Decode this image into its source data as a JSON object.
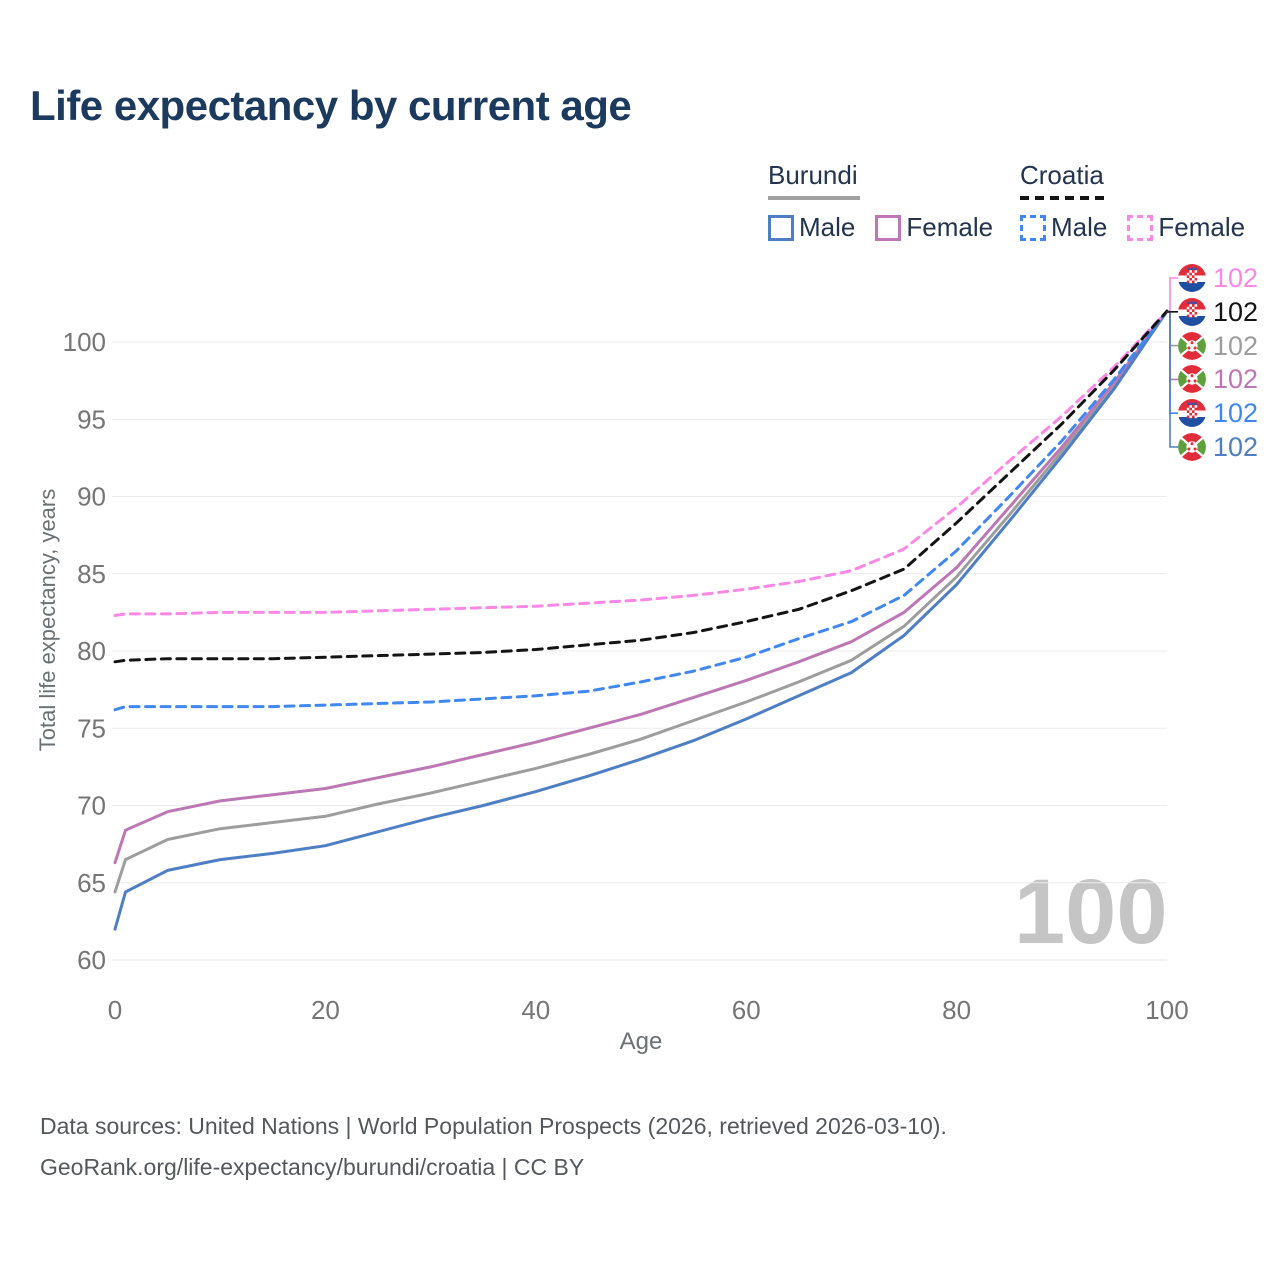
{
  "title": "Life expectancy by current age",
  "legend": {
    "groups": [
      {
        "country": "Burundi",
        "style": "solid",
        "items": [
          {
            "label": "Male"
          },
          {
            "label": "Female"
          }
        ]
      },
      {
        "country": "Croatia",
        "style": "dashed",
        "items": [
          {
            "label": "Male"
          },
          {
            "label": "Female"
          }
        ]
      }
    ]
  },
  "watermark": "100",
  "footer": {
    "line1": "Data sources: United Nations | World Population Prospects (2026, retrieved 2026-03-10).",
    "line2": "GeoRank.org/life-expectancy/burundi/croatia | CC BY"
  },
  "annotations": [
    {
      "id": "croatia-female",
      "flag": "croatia",
      "value": "102",
      "color": "#fb87e6"
    },
    {
      "id": "croatia-total",
      "flag": "croatia",
      "value": "102",
      "color": "#141414"
    },
    {
      "id": "burundi-total",
      "flag": "burundi",
      "value": "102",
      "color": "#9d9d9d"
    },
    {
      "id": "burundi-female",
      "flag": "burundi",
      "value": "102",
      "color": "#bd77b5"
    },
    {
      "id": "croatia-male",
      "flag": "croatia",
      "value": "102",
      "color": "#3f88f2"
    },
    {
      "id": "burundi-male",
      "flag": "burundi",
      "value": "102",
      "color": "#4e7fc4"
    }
  ],
  "chart_data": {
    "type": "line",
    "title": "Life expectancy by current age",
    "xlabel": "Age",
    "ylabel": "Total life expectancy, years",
    "xlim": [
      0,
      100
    ],
    "ylim": [
      60,
      102
    ],
    "xticks": [
      0,
      20,
      40,
      60,
      80,
      100
    ],
    "yticks": [
      60,
      65,
      70,
      75,
      80,
      85,
      90,
      95,
      100
    ],
    "grid": "horizontal",
    "legend_position": "top-right",
    "x": [
      0,
      1,
      5,
      10,
      15,
      20,
      25,
      30,
      35,
      40,
      45,
      50,
      55,
      60,
      65,
      70,
      75,
      80,
      85,
      90,
      95,
      100
    ],
    "series": [
      {
        "name": "Burundi Male",
        "country": "Burundi",
        "style": "solid",
        "color": "#4e7fc4",
        "values": [
          62.0,
          64.4,
          65.8,
          66.5,
          66.9,
          67.4,
          68.3,
          69.2,
          70.0,
          70.9,
          71.9,
          73.0,
          74.2,
          75.6,
          77.1,
          78.6,
          81.0,
          84.3,
          88.4,
          92.6,
          97.0,
          102
        ],
        "end_label": 102
      },
      {
        "name": "Burundi Female",
        "country": "Burundi",
        "style": "solid",
        "color": "#bd77b5",
        "values": [
          66.3,
          68.4,
          69.6,
          70.3,
          70.7,
          71.1,
          71.8,
          72.5,
          73.3,
          74.1,
          75.0,
          75.9,
          77.0,
          78.1,
          79.3,
          80.6,
          82.5,
          85.4,
          89.3,
          93.2,
          97.4,
          102
        ],
        "end_label": 102
      },
      {
        "name": "Burundi Total",
        "country": "Burundi",
        "style": "solid",
        "color": "#9d9d9d",
        "values": [
          64.4,
          66.5,
          67.8,
          68.5,
          68.9,
          69.3,
          70.1,
          70.8,
          71.6,
          72.4,
          73.3,
          74.3,
          75.5,
          76.7,
          78.0,
          79.4,
          81.6,
          84.8,
          88.8,
          92.9,
          97.2,
          102
        ],
        "end_label": 102
      },
      {
        "name": "Croatia Male",
        "country": "Croatia",
        "style": "dashed",
        "color": "#3f88f2",
        "values": [
          76.2,
          76.4,
          76.4,
          76.4,
          76.4,
          76.5,
          76.6,
          76.7,
          76.9,
          77.1,
          77.4,
          78.0,
          78.7,
          79.6,
          80.8,
          81.9,
          83.6,
          86.5,
          90.0,
          93.6,
          97.6,
          102
        ],
        "end_label": 102
      },
      {
        "name": "Croatia Female",
        "country": "Croatia",
        "style": "dashed",
        "color": "#fb87e6",
        "values": [
          82.3,
          82.4,
          82.4,
          82.5,
          82.5,
          82.5,
          82.6,
          82.7,
          82.8,
          82.9,
          83.1,
          83.3,
          83.6,
          84.0,
          84.5,
          85.2,
          86.6,
          89.3,
          92.3,
          95.2,
          98.4,
          102
        ],
        "end_label": 102
      },
      {
        "name": "Croatia Total",
        "country": "Croatia",
        "style": "dashed",
        "color": "#141414",
        "values": [
          79.3,
          79.4,
          79.5,
          79.5,
          79.5,
          79.6,
          79.7,
          79.8,
          79.9,
          80.1,
          80.4,
          80.7,
          81.2,
          81.9,
          82.7,
          83.9,
          85.3,
          88.3,
          91.5,
          94.7,
          98.2,
          102
        ],
        "end_label": 102
      }
    ],
    "colors": {
      "burundi_male": "#4e7fc4",
      "burundi_female": "#bd77b5",
      "burundi_total": "#9d9d9d",
      "croatia_male": "#3f88f2",
      "croatia_female": "#fb87e6",
      "croatia_total": "#141414",
      "grid": "#ebebeb",
      "tick_text": "#757575",
      "title_text": "#1c3a5e",
      "watermark": "#c5c5c5"
    }
  }
}
